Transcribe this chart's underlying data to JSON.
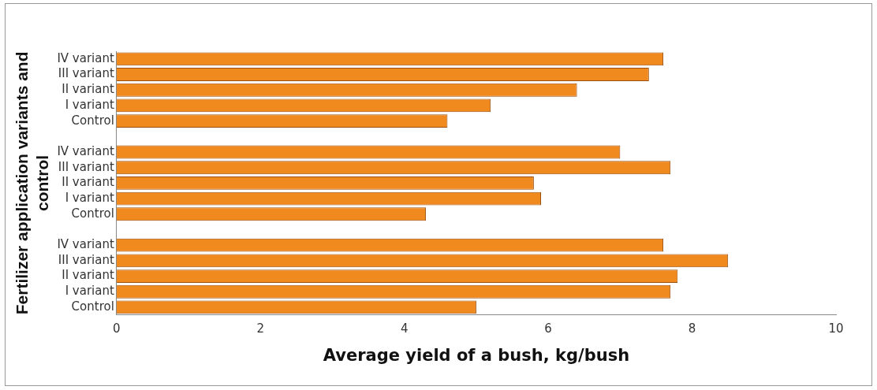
{
  "chart_data": {
    "type": "bar",
    "orientation": "horizontal",
    "categories": [
      "IV variant",
      "III variant",
      "II variant",
      "I variant",
      "Control",
      null,
      "IV variant",
      "III variant",
      "II variant",
      "I variant",
      "Control",
      null,
      "IV variant",
      "III variant",
      "II variant",
      "I variant",
      "Control"
    ],
    "values": [
      7.6,
      7.4,
      6.4,
      5.2,
      4.6,
      null,
      7.0,
      7.7,
      5.8,
      5.9,
      4.3,
      null,
      7.6,
      8.5,
      7.8,
      7.7,
      5.0
    ],
    "color": "#f0891e",
    "xlim": [
      0,
      10
    ],
    "xticks": [
      0,
      2,
      4,
      6,
      8,
      10
    ],
    "xlabel": "Average yield of a bush, kg/bush",
    "ylabel": "Fertilizer application variants and control",
    "grid": false,
    "legend": false
  }
}
